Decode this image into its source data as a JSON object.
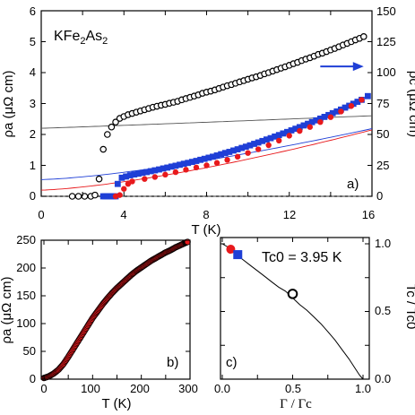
{
  "chart_data": [
    {
      "id": "a",
      "type": "scatter",
      "panel_label": "a)",
      "sample_label": "KFe2As2",
      "xlabel": "T (K)",
      "ylabel_left": "ρa (μΩ cm)",
      "ylabel_right": "ρc (μΩ cm)",
      "xlim": [
        0,
        16
      ],
      "ylim_left": [
        0,
        6
      ],
      "ylim_right": [
        0,
        150
      ],
      "xticks": [
        "0",
        "4",
        "8",
        "12",
        "16"
      ],
      "yticks_left": [
        "0",
        "1",
        "2",
        "3",
        "4",
        "5",
        "6"
      ],
      "yticks_right": [
        "0",
        "25",
        "50",
        "75",
        "100",
        "125",
        "150"
      ],
      "arrow": {
        "from_x": 13.5,
        "to_x": 15.6,
        "y": 4.2,
        "color": "#1f3fd6"
      },
      "zero_line": true,
      "series": [
        {
          "marker": "open-circle",
          "color": "#000000",
          "axis": "right",
          "fit": {
            "a": 55,
            "b": 0.55,
            "n": 1.05,
            "color": "#555555"
          },
          "x": [
            1.5,
            1.8,
            2.1,
            2.4,
            2.6,
            2.8,
            3.0,
            3.2,
            3.4,
            3.6,
            3.8,
            4.0,
            4.2,
            4.4,
            4.6,
            4.8,
            5.0,
            5.2,
            5.4,
            5.6,
            5.8,
            6.0,
            6.2,
            6.4,
            6.6,
            6.8,
            7.0,
            7.2,
            7.4,
            7.6,
            7.8,
            8.0,
            8.2,
            8.4,
            8.6,
            8.8,
            9.0,
            9.2,
            9.4,
            9.6,
            9.8,
            10.0,
            10.2,
            10.4,
            10.6,
            10.8,
            11.0,
            11.2,
            11.4,
            11.6,
            11.8,
            12.0,
            12.2,
            12.4,
            12.6,
            12.8,
            13.0,
            13.2,
            13.4,
            13.6,
            13.8,
            14.0,
            14.2,
            14.4,
            14.6,
            14.8,
            15.0,
            15.2,
            15.4,
            15.6
          ],
          "y": [
            0,
            0,
            0,
            0,
            1,
            14,
            38,
            50,
            56,
            60,
            63,
            64.5,
            66,
            67,
            68,
            69,
            70,
            71,
            72,
            72.8,
            73.6,
            74.3,
            75.2,
            76,
            76.8,
            78,
            79,
            80,
            81,
            82,
            83.3,
            84.2,
            85,
            86,
            87.2,
            88.3,
            89.4,
            90.3,
            91.4,
            92.5,
            93.5,
            94.6,
            95.7,
            96.6,
            97.7,
            99,
            100,
            101.2,
            102.4,
            103.6,
            104.7,
            105.9,
            107.2,
            108.3,
            109.7,
            110.9,
            112,
            113.3,
            114.7,
            115.7,
            117,
            118.3,
            119.5,
            120.9,
            122.3,
            123.6,
            125,
            126.4,
            127.7,
            129.1
          ]
        },
        {
          "marker": "filled-square",
          "color": "#1f3fd6",
          "axis": "right",
          "fit": {
            "a": 13.5,
            "b": 0.85,
            "n": 1.4,
            "color": "#1f3fd6"
          },
          "x": [
            3.0,
            3.1,
            3.2,
            3.3,
            3.4,
            3.5,
            3.6,
            3.7,
            3.9,
            4.1,
            4.3,
            4.5,
            4.7,
            4.9,
            5.1,
            5.3,
            5.5,
            5.7,
            5.9,
            6.1,
            6.3,
            6.5,
            6.7,
            6.9,
            7.1,
            7.3,
            7.5,
            7.7,
            7.9,
            8.1,
            8.3,
            8.5,
            8.7,
            8.9,
            9.1,
            9.3,
            9.5,
            9.7,
            9.9,
            10.1,
            10.3,
            10.5,
            10.7,
            10.9,
            11.1,
            11.3,
            11.5,
            11.7,
            11.9,
            12.1,
            12.3,
            12.5,
            12.7,
            12.9,
            13.1,
            13.3,
            13.5,
            13.7,
            13.9,
            14.1,
            14.3,
            14.5,
            14.7,
            14.9,
            15.1,
            15.3,
            15.5,
            15.8
          ],
          "y": [
            0,
            0,
            0,
            0,
            0,
            0,
            0,
            10,
            15,
            16,
            17,
            17.7,
            18.3,
            19,
            19.6,
            20.3,
            21,
            21.7,
            22.5,
            23.2,
            24,
            24.7,
            25.5,
            26.3,
            27,
            27.8,
            28.6,
            29.5,
            30.3,
            31.2,
            32,
            33,
            34,
            35,
            35.9,
            37,
            38,
            39.1,
            40.1,
            41.2,
            42.4,
            43.5,
            44.7,
            45.9,
            47,
            48.3,
            49.5,
            50.8,
            52,
            53.3,
            54.6,
            55.9,
            57.3,
            58.6,
            60,
            61.4,
            62.8,
            64.2,
            65.7,
            67.2,
            68.6,
            70.1,
            71.7,
            73.2,
            74.8,
            76.4,
            78,
            81
          ]
        },
        {
          "marker": "filled-circle",
          "color": "#e8191c",
          "axis": "right",
          "fit": {
            "a": 5,
            "b": 0.95,
            "n": 1.42,
            "color": "#e8191c"
          },
          "x": [
            3.6,
            3.8,
            4.0,
            4.2,
            4.4,
            5.0,
            5.5,
            6.0,
            6.5,
            7.0,
            7.5,
            8.0,
            8.5,
            9.0,
            9.5,
            10.0,
            10.5,
            11.0,
            11.5,
            12.0,
            12.5,
            13.0,
            13.5,
            14.0,
            14.5,
            15.0,
            15.5
          ],
          "y": [
            0,
            1,
            6,
            10,
            12,
            14,
            15.6,
            17.5,
            19.5,
            21.5,
            23.3,
            25,
            27,
            29.4,
            32,
            35,
            38,
            41.3,
            45,
            49,
            52.8,
            56,
            60,
            64,
            68.5,
            73,
            78
          ]
        }
      ]
    },
    {
      "id": "b",
      "type": "line",
      "panel_label": "b)",
      "xlabel": "T (K)",
      "ylabel": "ρa (μΩ cm)",
      "xlim": [
        0,
        300
      ],
      "ylim": [
        0,
        250
      ],
      "xticks": [
        "0",
        "100",
        "200",
        "300"
      ],
      "yticks": [
        "0",
        "50",
        "100",
        "150",
        "200",
        "250"
      ],
      "series": [
        {
          "marker": "filled-circle",
          "color": "#e8191c",
          "x": [
            0,
            10,
            20,
            30,
            40,
            50,
            60,
            70,
            80,
            90,
            100,
            110,
            120,
            130,
            140,
            150,
            160,
            170,
            180,
            190,
            200,
            210,
            220,
            230,
            240,
            250,
            260,
            270,
            280,
            290,
            295
          ],
          "y": [
            2,
            5,
            10,
            17,
            27,
            40,
            54,
            68,
            82,
            96,
            110,
            122,
            134,
            145,
            155,
            164,
            172,
            180,
            188,
            195,
            201,
            207,
            213,
            218,
            223,
            228,
            232,
            237,
            241,
            245,
            247
          ]
        }
      ]
    },
    {
      "id": "c",
      "type": "scatter",
      "panel_label": "c)",
      "annotation": "Tc0 = 3.95 K",
      "xlabel": "Γ / Γc",
      "ylabel": "Tc / Tc0",
      "xlim": [
        0,
        1
      ],
      "ylim": [
        0,
        1.05
      ],
      "xticks": [
        "0.0",
        "0.5",
        "1.0"
      ],
      "yticks": [
        "0.0",
        "0.5",
        "1.0"
      ],
      "curve": {
        "x": [
          0,
          0.05,
          0.1,
          0.15,
          0.2,
          0.25,
          0.3,
          0.35,
          0.4,
          0.45,
          0.5,
          0.55,
          0.6,
          0.65,
          0.7,
          0.75,
          0.8,
          0.85,
          0.9,
          0.95,
          0.975,
          1.0
        ],
        "y": [
          1.0,
          0.97,
          0.92,
          0.88,
          0.84,
          0.8,
          0.76,
          0.72,
          0.68,
          0.65,
          0.6,
          0.55,
          0.51,
          0.46,
          0.41,
          0.35,
          0.29,
          0.22,
          0.15,
          0.07,
          0.03,
          0.0
        ]
      },
      "series": [
        {
          "marker": "filled-circle",
          "color": "#e8191c",
          "x": [
            0.06
          ],
          "y": [
            0.96
          ]
        },
        {
          "marker": "filled-square",
          "color": "#1f3fd6",
          "x": [
            0.11
          ],
          "y": [
            0.92
          ]
        },
        {
          "marker": "open-circle",
          "color": "#000000",
          "x": [
            0.5
          ],
          "y": [
            0.63
          ]
        }
      ]
    }
  ]
}
